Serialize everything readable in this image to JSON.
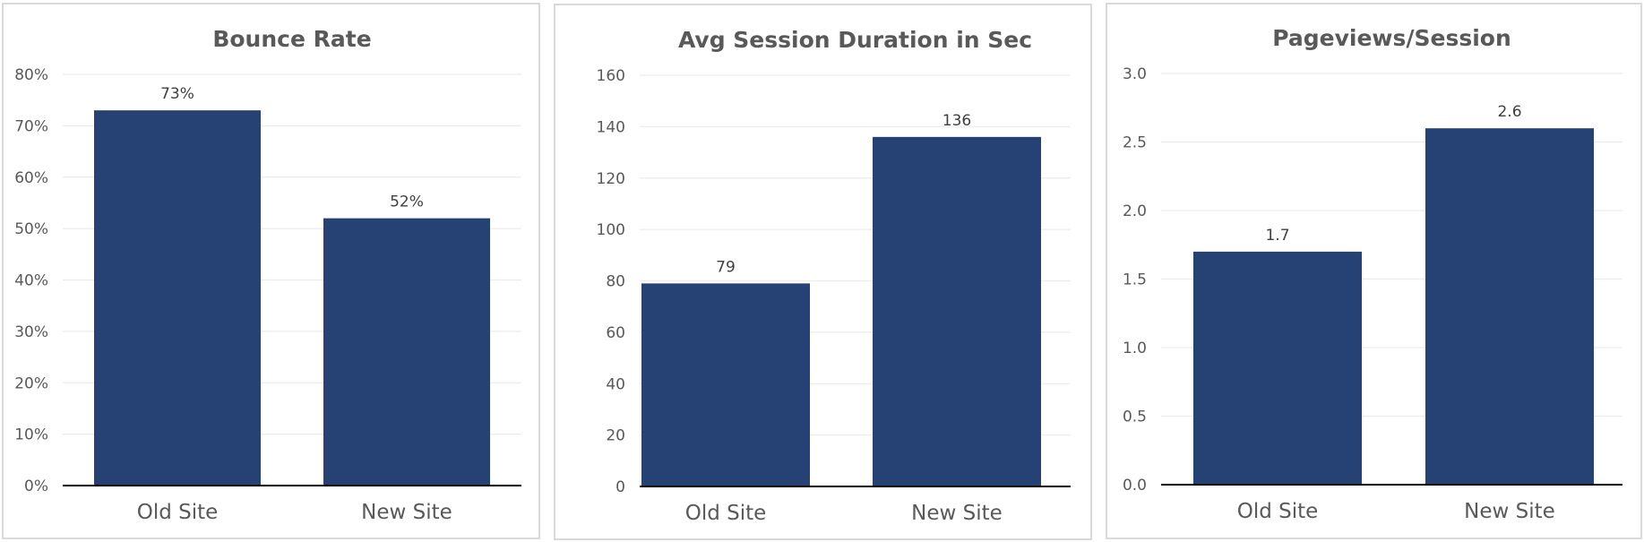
{
  "colors": {
    "bar": "#264274",
    "grid": "#ececec",
    "axis": "#000000",
    "text": "#595959"
  },
  "chart_data": [
    {
      "type": "bar",
      "title": "Bounce Rate",
      "categories": [
        "Old Site",
        "New Site"
      ],
      "values": [
        73,
        52
      ],
      "value_labels": [
        "73%",
        "52%"
      ],
      "yticks": [
        "0%",
        "10%",
        "20%",
        "30%",
        "40%",
        "50%",
        "60%",
        "70%",
        "80%"
      ],
      "ylim": [
        0,
        80
      ],
      "ystep": 10,
      "xlabel": "",
      "ylabel": "",
      "grid": true,
      "legend": "none"
    },
    {
      "type": "bar",
      "title": "Avg Session Duration in Sec",
      "categories": [
        "Old Site",
        "New Site"
      ],
      "values": [
        79,
        136
      ],
      "value_labels": [
        "79",
        "136"
      ],
      "yticks": [
        "0",
        "20",
        "40",
        "60",
        "80",
        "100",
        "120",
        "140",
        "160"
      ],
      "ylim": [
        0,
        160
      ],
      "ystep": 20,
      "xlabel": "",
      "ylabel": "",
      "grid": true,
      "legend": "none"
    },
    {
      "type": "bar",
      "title": "Pageviews/Session",
      "categories": [
        "Old Site",
        "New Site"
      ],
      "values": [
        1.7,
        2.6
      ],
      "value_labels": [
        "1.7",
        "2.6"
      ],
      "yticks": [
        "0.0",
        "0.5",
        "1.0",
        "1.5",
        "2.0",
        "2.5",
        "3.0"
      ],
      "ylim": [
        0,
        3
      ],
      "ystep": 0.5,
      "xlabel": "",
      "ylabel": "",
      "grid": true,
      "legend": "none"
    }
  ]
}
